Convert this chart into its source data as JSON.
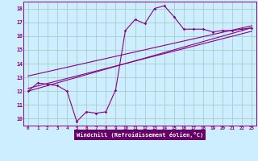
{
  "xlabel": "Windchill (Refroidissement éolien,°C)",
  "ylabel": "",
  "bg_color": "#cceeff",
  "grid_color": "#aacccc",
  "line_color": "#880088",
  "xlabel_bg": "#660066",
  "xlabel_fg": "#ffffff",
  "x_hours": [
    0,
    1,
    2,
    3,
    4,
    5,
    6,
    7,
    8,
    9,
    10,
    11,
    12,
    13,
    14,
    15,
    16,
    17,
    18,
    19,
    20,
    21,
    22,
    23
  ],
  "windchill_values": [
    12.0,
    12.6,
    12.5,
    12.4,
    12.0,
    9.8,
    10.5,
    10.4,
    10.5,
    12.1,
    16.4,
    17.2,
    16.9,
    18.0,
    18.2,
    17.4,
    16.5,
    16.5,
    16.5,
    16.3,
    16.4,
    16.4,
    16.5,
    16.6
  ],
  "ref_lines": [
    [
      [
        0,
        12.0
      ],
      [
        23,
        16.6
      ]
    ],
    [
      [
        0,
        12.2
      ],
      [
        23,
        16.35
      ]
    ],
    [
      [
        0,
        13.1
      ],
      [
        23,
        16.75
      ]
    ]
  ],
  "ylim": [
    9.5,
    18.5
  ],
  "xlim": [
    -0.5,
    23.5
  ],
  "yticks": [
    10,
    11,
    12,
    13,
    14,
    15,
    16,
    17,
    18
  ],
  "xticks": [
    0,
    1,
    2,
    3,
    4,
    5,
    6,
    7,
    8,
    9,
    10,
    11,
    12,
    13,
    14,
    15,
    16,
    17,
    18,
    19,
    20,
    21,
    22,
    23
  ]
}
